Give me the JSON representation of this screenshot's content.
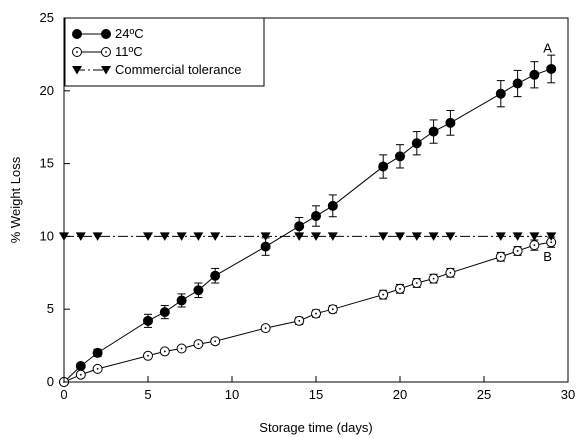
{
  "chart_data": {
    "type": "line",
    "xlabel": "Storage time (days)",
    "ylabel": "% Weight Loss",
    "xlim": [
      0,
      30
    ],
    "ylim": [
      0,
      25
    ],
    "xticks": [
      "0",
      "5",
      "10",
      "15",
      "20",
      "25",
      "30"
    ],
    "yticks": [
      "0",
      "5",
      "10",
      "15",
      "20",
      "25"
    ],
    "grid": false,
    "legend_position": "top-left",
    "series": [
      {
        "name": "24ºC",
        "marker": "filled-circle",
        "line": "solid",
        "x": [
          0,
          1,
          2,
          5,
          6,
          7,
          8,
          9,
          12,
          14,
          15,
          16,
          19,
          20,
          21,
          22,
          23,
          26,
          27,
          28,
          29
        ],
        "y": [
          0,
          1.1,
          2.0,
          4.2,
          4.8,
          5.6,
          6.3,
          7.3,
          9.3,
          10.7,
          11.4,
          12.1,
          14.8,
          15.5,
          16.4,
          17.2,
          17.8,
          19.8,
          20.5,
          21.1,
          21.5
        ],
        "err": [
          0,
          0.2,
          0.25,
          0.45,
          0.45,
          0.45,
          0.5,
          0.5,
          0.6,
          0.6,
          0.7,
          0.75,
          0.8,
          0.8,
          0.8,
          0.8,
          0.85,
          0.9,
          0.9,
          0.9,
          0.95
        ]
      },
      {
        "name": "11ºC",
        "marker": "open-circle",
        "line": "solid",
        "x": [
          0,
          1,
          2,
          5,
          6,
          7,
          8,
          9,
          12,
          14,
          15,
          16,
          19,
          20,
          21,
          22,
          23,
          26,
          27,
          28,
          29
        ],
        "y": [
          0,
          0.5,
          0.9,
          1.8,
          2.1,
          2.3,
          2.6,
          2.8,
          3.7,
          4.2,
          4.7,
          5.0,
          6.0,
          6.4,
          6.8,
          7.1,
          7.5,
          8.6,
          9.0,
          9.4,
          9.6
        ],
        "err": [
          0,
          0.1,
          0.1,
          0.15,
          0.15,
          0.15,
          0.15,
          0.2,
          0.2,
          0.25,
          0.25,
          0.25,
          0.3,
          0.3,
          0.3,
          0.3,
          0.3,
          0.3,
          0.3,
          0.35,
          0.35
        ]
      },
      {
        "name": "Commercial tolerance",
        "marker": "filled-triangle-down",
        "line": "dash-dot",
        "x": [
          0,
          1,
          2,
          5,
          6,
          7,
          8,
          9,
          12,
          14,
          15,
          16,
          19,
          20,
          21,
          22,
          23,
          26,
          27,
          28,
          29
        ],
        "y": [
          10,
          10,
          10,
          10,
          10,
          10,
          10,
          10,
          10,
          10,
          10,
          10,
          10,
          10,
          10,
          10,
          10,
          10,
          10,
          10,
          10
        ]
      }
    ],
    "annotations": [
      {
        "text": "A",
        "x": 29,
        "y": 22.9
      },
      {
        "text": "B",
        "x": 29,
        "y": 8.6
      }
    ]
  }
}
